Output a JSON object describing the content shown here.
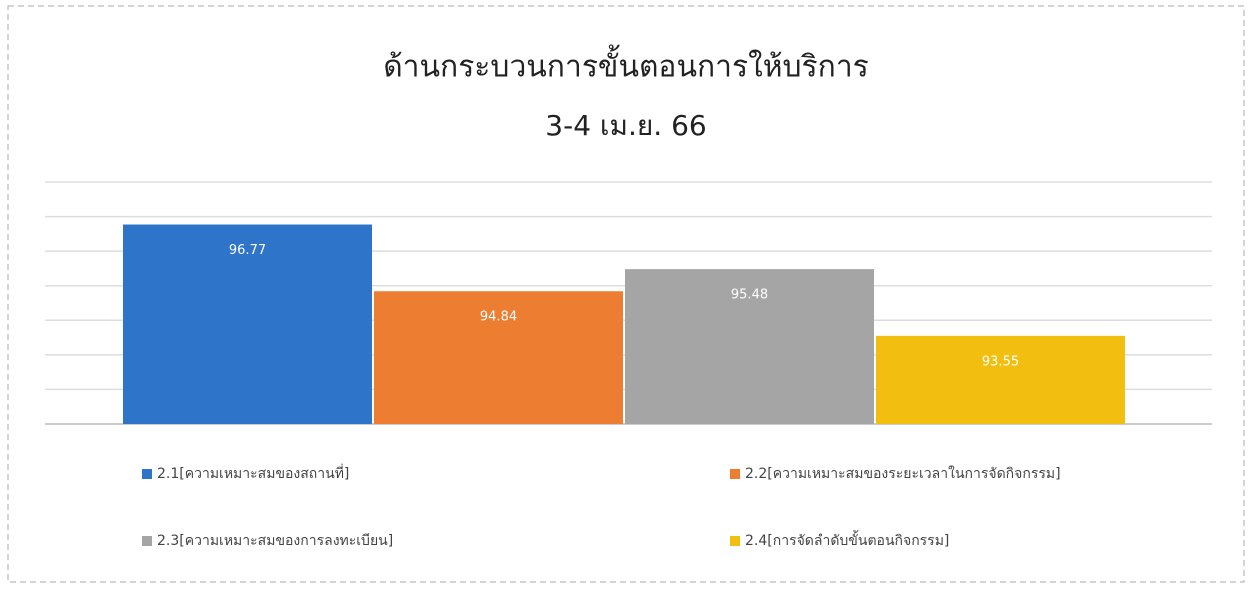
{
  "chart_data": {
    "type": "bar",
    "title": "ด้านกระบวนการขั้นตอนการให้บริการ",
    "subtitle": "3-4 เม.ย. 66",
    "series": [
      {
        "name": "2.1[ความเหมาะสมของสถานที่]",
        "color": "#2e75c9",
        "values": [
          96.77
        ]
      },
      {
        "name": "2.2[ความเหมาะสมของระยะเวลาในการจัดกิจกรรม]",
        "color": "#ed7d31",
        "values": [
          94.84
        ]
      },
      {
        "name": "2.3[ความเหมาะสมของการลงทะเบียน]",
        "color": "#a5a5a5",
        "values": [
          95.48
        ]
      },
      {
        "name": "2.4[การจัดลำดับขั้นตอนกิจกรรม]",
        "color": "#f2bf10",
        "values": [
          93.55
        ]
      }
    ],
    "ylim": [
      91,
      98
    ],
    "yticks": [
      91,
      92,
      93,
      94,
      95,
      96,
      97,
      98
    ],
    "grid": true
  }
}
